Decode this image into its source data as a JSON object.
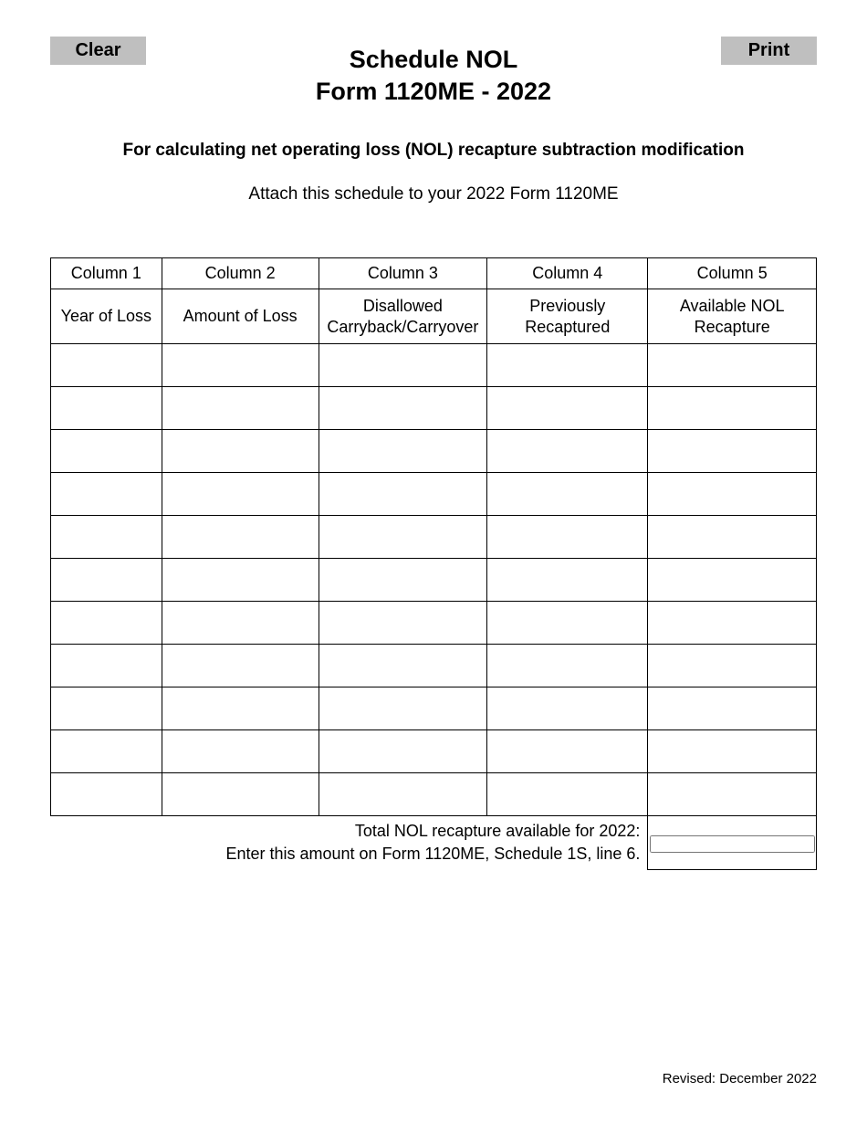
{
  "buttons": {
    "clear": "Clear",
    "print": "Print"
  },
  "title": {
    "line1": "Schedule NOL",
    "line2": "Form 1120ME - 2022"
  },
  "subtitle": "For calculating net operating loss (NOL) recapture subtraction modification",
  "attach_note": "Attach this schedule to your 2022 Form 1120ME",
  "table": {
    "columns": {
      "col1": {
        "num": "Column 1",
        "label": "Year of Loss"
      },
      "col2": {
        "num": "Column 2",
        "label": "Amount of Loss"
      },
      "col3": {
        "num": "Column 3",
        "label": "Disallowed Carryback/Carryover"
      },
      "col4": {
        "num": "Column 4",
        "label": "Previously Recaptured"
      },
      "col5": {
        "num": "Column 5",
        "label": "Available NOL Recapture"
      }
    },
    "row_count": 11,
    "total_label_line1": "Total NOL recapture available for 2022:",
    "total_label_line2": "Enter this amount on Form 1120ME, Schedule 1S, line 6.",
    "column_widths_pct": [
      14.5,
      20.5,
      22,
      21,
      22
    ],
    "border_color": "#000000",
    "background_color": "#ffffff"
  },
  "revised": "Revised: December 2022",
  "colors": {
    "button_bg": "#bfbfbf",
    "text": "#000000",
    "page_bg": "#ffffff"
  },
  "fonts": {
    "family": "Arial",
    "title_size_pt": 20,
    "subtitle_size_pt": 14,
    "body_size_pt": 14,
    "revised_size_pt": 11
  }
}
